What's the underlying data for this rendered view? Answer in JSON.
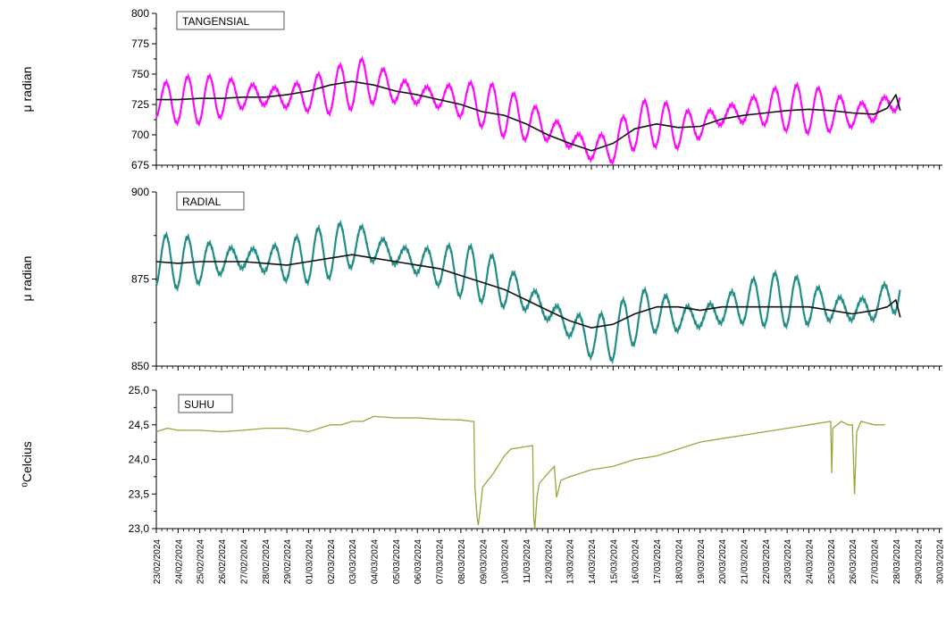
{
  "colors": {
    "tangensial": "#ff00ff",
    "radial": "#1a8a80",
    "suhu": "#9aa63a",
    "trend": "#111111"
  },
  "x_dates": [
    "23/02/2024",
    "24/02/2024",
    "25/02/2024",
    "26/02/2024",
    "27/02/2024",
    "28/02/2024",
    "29/02/2024",
    "01/03/2024",
    "02/03/2024",
    "03/03/2024",
    "04/03/2024",
    "05/03/2024",
    "06/03/2024",
    "07/03/2024",
    "08/03/2024",
    "09/03/2024",
    "10/03/2024",
    "11/03/2024",
    "12/03/2024",
    "13/03/2024",
    "14/03/2024",
    "15/03/2024",
    "16/03/2024",
    "17/03/2024",
    "18/03/2024",
    "19/03/2024",
    "20/03/2024",
    "21/03/2024",
    "22/03/2024",
    "23/03/2024",
    "24/03/2024",
    "25/03/2024",
    "26/03/2024",
    "27/03/2024",
    "28/03/2024",
    "29/03/2024",
    "30/03/2024"
  ],
  "chart_data": [
    {
      "type": "line",
      "label": "TANGENSIAL",
      "ylabel": "μ radian",
      "ylim": [
        675,
        800
      ],
      "yticks": [
        "675",
        "700",
        "725",
        "750",
        "775",
        "800"
      ],
      "series": [
        {
          "role": "raw",
          "amplitude": 18,
          "x": [
            0,
            2,
            4,
            6,
            7.5,
            8.5,
            9.5,
            10.5,
            12,
            13.5,
            15,
            16,
            17,
            18,
            19,
            20,
            21,
            22,
            23,
            24,
            25,
            26,
            27,
            28,
            29,
            30,
            31,
            32,
            33,
            34.2
          ],
          "values": [
            727,
            729,
            733,
            731,
            734,
            738,
            744,
            740,
            733,
            730,
            725,
            718,
            712,
            706,
            697,
            688,
            691,
            707,
            710,
            705,
            708,
            716,
            719,
            722,
            722,
            721,
            719,
            717,
            719,
            731
          ]
        },
        {
          "role": "trend",
          "x": [
            0,
            1,
            2,
            3,
            4,
            5,
            6,
            7,
            8,
            9,
            10,
            11,
            12,
            13,
            14,
            15,
            16,
            17,
            18,
            19,
            20,
            21,
            22,
            23,
            24,
            25,
            26,
            27,
            28,
            29,
            30,
            31,
            32,
            33,
            33.6,
            34,
            34.2
          ],
          "values": [
            729,
            729,
            730,
            730,
            731,
            731,
            733,
            736,
            741,
            744,
            741,
            736,
            733,
            729,
            725,
            719,
            716,
            709,
            700,
            693,
            687,
            693,
            705,
            709,
            706,
            707,
            713,
            716,
            718,
            720,
            721,
            720,
            718,
            717,
            722,
            733,
            720
          ]
        }
      ]
    },
    {
      "type": "line",
      "label": "RADIAL",
      "ylabel": "μ radian",
      "ylim": [
        850,
        900
      ],
      "yticks": [
        "850",
        "875",
        "900"
      ],
      "series": [
        {
          "role": "raw",
          "amplitude": 7,
          "x": [
            0,
            2,
            4,
            6,
            7.5,
            8.5,
            9.5,
            10.5,
            12,
            13.5,
            15,
            16,
            17,
            18,
            19,
            20,
            21,
            22,
            23,
            24,
            25,
            26,
            27,
            28,
            29,
            30,
            31,
            32,
            33,
            34.2
          ],
          "values": [
            880,
            880,
            881,
            880,
            882,
            884,
            885,
            883,
            880,
            878,
            876,
            873,
            870,
            866,
            862,
            858,
            859,
            864,
            866,
            864,
            864,
            866,
            868,
            869,
            869,
            868,
            867,
            866,
            867,
            872
          ]
        },
        {
          "role": "trend",
          "x": [
            0,
            1,
            2,
            3,
            4,
            5,
            6,
            7,
            8,
            9,
            10,
            11,
            12,
            13,
            14,
            15,
            16,
            17,
            18,
            19,
            20,
            21,
            22,
            23,
            24,
            25,
            26,
            27,
            28,
            29,
            30,
            31,
            32,
            33,
            33.6,
            34,
            34.2
          ],
          "values": [
            880,
            879.5,
            880,
            880,
            880,
            879.5,
            879,
            880,
            881,
            882,
            881,
            880,
            879,
            878,
            876,
            874,
            872,
            869,
            866,
            863,
            861,
            862,
            865,
            867,
            867,
            866,
            867,
            867,
            867,
            867,
            867,
            866,
            865,
            866,
            867,
            869,
            864
          ]
        }
      ]
    },
    {
      "type": "line",
      "label": "SUHU",
      "ylabel": "⁰Celcius",
      "ylim": [
        23.0,
        25.0
      ],
      "yticks": [
        "23,0",
        "23,5",
        "24,0",
        "24,5",
        "25,0"
      ],
      "series": [
        {
          "role": "raw",
          "x": [
            0,
            0.5,
            1,
            2,
            3,
            4,
            5,
            6,
            7,
            8,
            8.5,
            9,
            9.5,
            10,
            11,
            12,
            13,
            14,
            14.5,
            14.6,
            14.65,
            14.75,
            14.8,
            14.9,
            15,
            15.5,
            16,
            16.3,
            17.3,
            17.35,
            17.4,
            17.5,
            17.6,
            18,
            18.3,
            18.4,
            18.6,
            19,
            19.5,
            20,
            21,
            22,
            23,
            24,
            25,
            26,
            27,
            28,
            29,
            30,
            31,
            31.05,
            31.1,
            31.3,
            31.5,
            31.8,
            32,
            32.1,
            32.2,
            32.4,
            33,
            33.5
          ],
          "values": [
            24.4,
            24.45,
            24.42,
            24.42,
            24.4,
            24.42,
            24.45,
            24.45,
            24.4,
            24.5,
            24.5,
            24.55,
            24.55,
            24.62,
            24.6,
            24.6,
            24.58,
            24.57,
            24.55,
            24.55,
            23.6,
            23.15,
            23.05,
            23.3,
            23.6,
            23.8,
            24.05,
            24.15,
            24.2,
            23.15,
            23.0,
            23.45,
            23.65,
            23.8,
            23.9,
            23.45,
            23.7,
            23.75,
            23.8,
            23.85,
            23.9,
            24.0,
            24.05,
            24.15,
            24.25,
            24.3,
            24.35,
            24.4,
            24.45,
            24.5,
            24.55,
            23.8,
            24.45,
            24.5,
            24.55,
            24.5,
            24.5,
            23.5,
            24.4,
            24.55,
            24.5,
            24.5
          ]
        }
      ]
    }
  ]
}
